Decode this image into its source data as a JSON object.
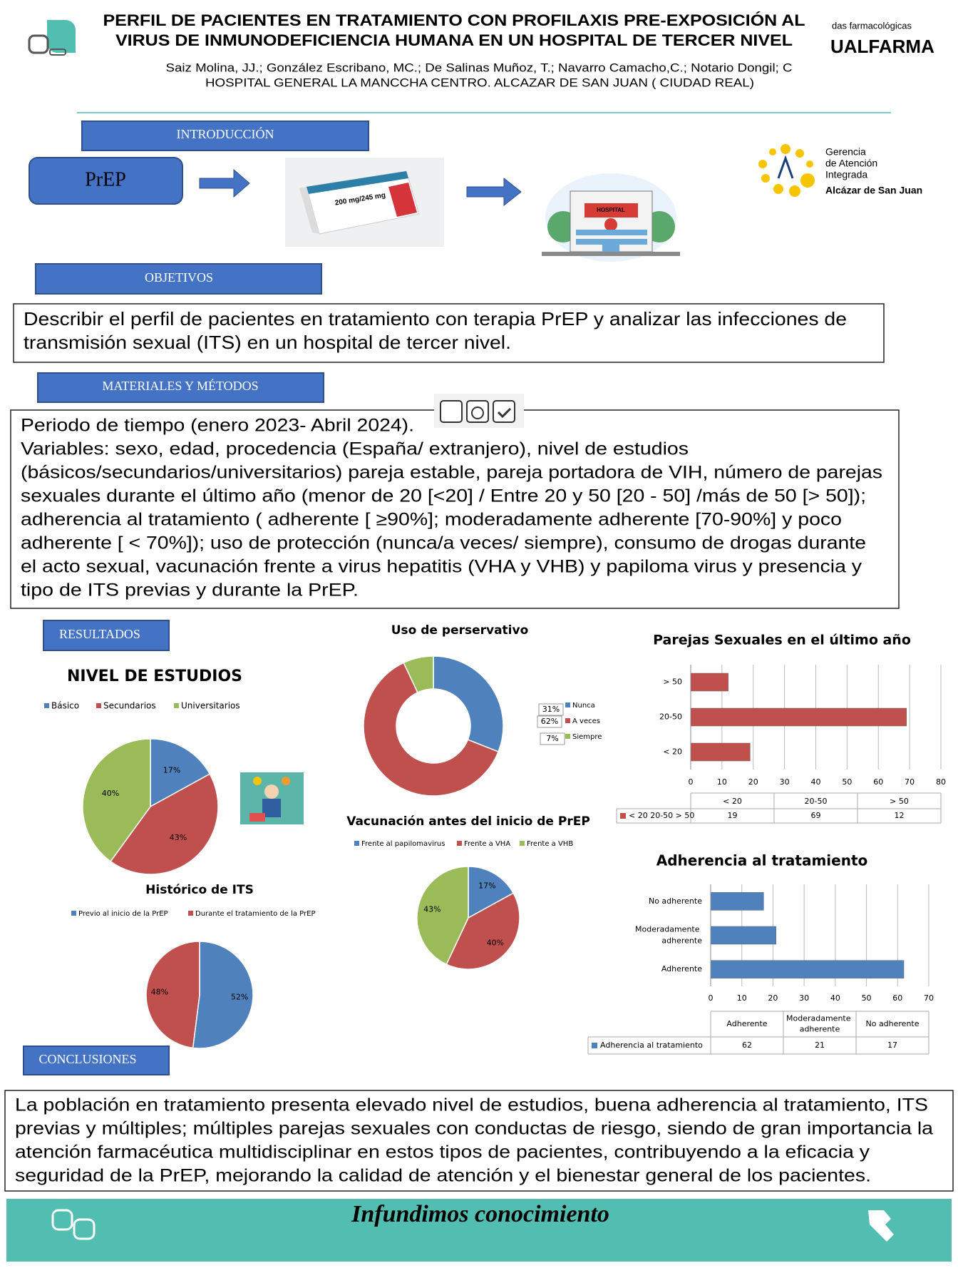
{
  "header": {
    "title_lines": [
      "PERFIL DE PACIENTES EN TRATAMIENTO CON PROFILAXIS PRE-EXPOSICIÓN AL",
      "VIRUS DE INMUNODEFICIENCIA HUMANA EN UN HOSPITAL DE TERCER NIVEL"
    ],
    "authors": "Saiz Molina, JJ.; González Escribano, MC.; De Salinas Muñoz, T.; Navarro Camacho,C.; Notario Dongil; C",
    "hospital": "HOSPITAL GENERAL LA MANCCHA CENTRO. ALCAZAR DE SAN JUAN ( CIUDAD REAL)",
    "logo_right": [
      "das farmacológicas",
      "UALFARMA"
    ]
  },
  "introduccion": {
    "heading": "INTRODUCCIÓN",
    "prep": "PrEP",
    "box_label": "200 mg/245 mg",
    "hospital_sign": "HOSPITAL"
  },
  "gerencia": [
    "Gerencia",
    "de Atención",
    "Integrada",
    "Alcázar de San Juan"
  ],
  "objetivos": {
    "heading": "OBJETIVOS",
    "lines": [
      "Describir el perfil de pacientes en tratamiento con terapia PrEP y analizar las infecciones de",
      "transmisión sexual (ITS) en un hospital de tercer nivel."
    ]
  },
  "materiales": {
    "heading": "MATERIALES Y MÉTODOS",
    "lines": [
      "Periodo de tiempo (enero 2023- Abril 2024).",
      "Variables: sexo, edad, procedencia (España/ extranjero), nivel de estudios",
      "(básicos/secundarios/universitarios) pareja estable, pareja portadora de VIH, número de parejas",
      "sexuales durante el último año (menor de 20 [<20] / Entre 20 y 50 [20 - 50] /más de 50 [> 50]);",
      "adherencia al tratamiento ( adherente [ ≥90%]; moderadamente adherente [70-90%] y poco",
      "adherente [ < 70%]); uso de protección (nunca/a veces/ siempre), consumo de drogas durante",
      "el acto sexual, vacunación frente a virus hepatitis (VHA y VHB) y papiloma virus y presencia y",
      "tipo de ITS previas y durante la PrEP."
    ]
  },
  "resultados": {
    "heading": "RESULTADOS"
  },
  "charts": [
    {
      "type": "pie",
      "title": "NIVEL DE ESTUDIOS",
      "categories": [
        "Básico",
        "Secundarios",
        "Universitarios"
      ],
      "values": [
        17,
        43,
        40
      ],
      "value_labels": [
        "17%",
        "43%",
        "40%"
      ],
      "colors": [
        "#4f81bd",
        "#c0504d",
        "#9bbb59"
      ]
    },
    {
      "type": "donut",
      "title": "Uso de perservativo",
      "categories": [
        "Nunca",
        "A veces",
        "Siempre"
      ],
      "values": [
        31,
        62,
        7
      ],
      "value_labels": [
        "31%",
        "62%",
        "7%"
      ],
      "colors": [
        "#4f81bd",
        "#c0504d",
        "#9bbb59"
      ]
    },
    {
      "type": "hbar",
      "title": "Parejas Sexuales en el último año",
      "categories": [
        "< 20",
        "20-50",
        "> 50"
      ],
      "series": [
        {
          "name": "< 20 20-50 > 50",
          "color": "#c0504d",
          "values": [
            19,
            69,
            12
          ]
        }
      ],
      "xlim": [
        0,
        80
      ],
      "xticks": [
        0,
        10,
        20,
        30,
        40,
        50,
        60,
        70,
        80
      ],
      "grid": true
    },
    {
      "type": "pie",
      "title": "Vacunación antes del inicio de PrEP",
      "categories": [
        "Frente al papilomavirus",
        "Frente a VHA",
        "Frente a VHB"
      ],
      "values": [
        17,
        40,
        43
      ],
      "value_labels": [
        "17%",
        "40%",
        "43%"
      ],
      "colors": [
        "#4f81bd",
        "#c0504d",
        "#9bbb59"
      ]
    },
    {
      "type": "pie",
      "title": "Histórico de ITS",
      "categories": [
        "Previo al inicio de la PrEP",
        "Durante el tratamiento de la PrEP"
      ],
      "values": [
        52,
        48
      ],
      "value_labels": [
        "52%",
        "48%"
      ],
      "colors": [
        "#4f81bd",
        "#c0504d"
      ]
    },
    {
      "type": "hbar",
      "title": "Adherencia al tratamiento",
      "categories": [
        "Adherente",
        "Moderadamente adherente",
        "No adherente"
      ],
      "series": [
        {
          "name": "Adherencia al tratamiento",
          "color": "#4f81bd",
          "values": [
            62,
            21,
            17
          ]
        }
      ],
      "xlim": [
        0,
        70
      ],
      "xticks": [
        0,
        10,
        20,
        30,
        40,
        50,
        60,
        70
      ],
      "grid": true
    }
  ],
  "conclusiones": {
    "heading": "CONCLUSIONES",
    "lines": [
      "La población en tratamiento presenta elevado nivel de estudios, buena adherencia al tratamiento, ITS",
      "previas y múltiples; múltiples parejas sexuales con conductas de riesgo, siendo de gran importancia la",
      "atención farmacéutica multidisciplinar en estos tipos de pacientes, contribuyendo a la eficacia y",
      "seguridad de la PrEP, mejorando la calidad de atención y el bienestar general de los pacientes."
    ]
  },
  "footer": {
    "slogan": "Infundimos conocimiento"
  }
}
